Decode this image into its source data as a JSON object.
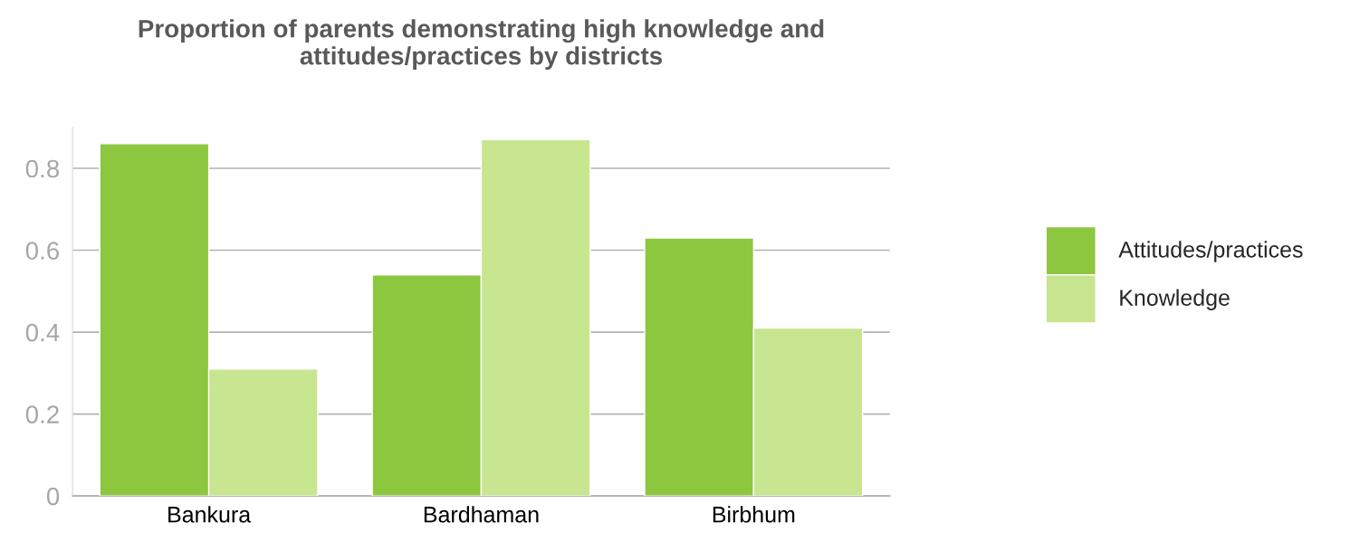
{
  "chart_data": {
    "type": "bar",
    "title": "Proportion of parents demonstrating high knowledge and\nattitudes/practices by districts",
    "categories": [
      "Bankura",
      "Bardhaman",
      "Birbhum"
    ],
    "series": [
      {
        "name": "Attitudes/practices",
        "color": "#8dc63f",
        "values": [
          0.86,
          0.54,
          0.63
        ]
      },
      {
        "name": "Knowledge",
        "color": "#c8e590",
        "values": [
          0.31,
          0.87,
          0.41
        ]
      }
    ],
    "ylim": [
      0,
      0.9
    ],
    "yticks": [
      0,
      0.2,
      0.4,
      0.6,
      0.8
    ],
    "grid": "y",
    "legend": "right"
  }
}
